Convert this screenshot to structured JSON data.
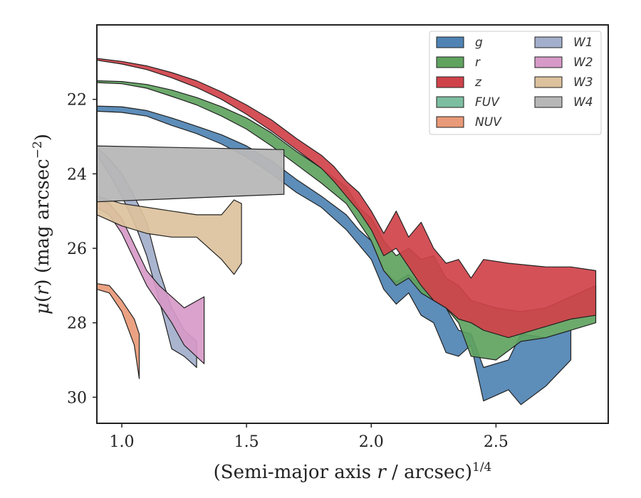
{
  "chart_data": {
    "type": "area",
    "xlabel": "(Semi-major axis r / arcsec)^{1/4}",
    "ylabel": "μ(r) (mag arcsec^{-2})",
    "xlim": [
      0.9,
      2.95
    ],
    "ylim": [
      30.7,
      20.0
    ],
    "y_inverted": true,
    "xticks": [
      "1.0",
      "1.5",
      "2.0",
      "2.5"
    ],
    "xtick_values": [
      1.0,
      1.5,
      2.0,
      2.5
    ],
    "yticks": [
      "22",
      "24",
      "26",
      "28",
      "30"
    ],
    "ytick_values": [
      22,
      24,
      26,
      28,
      30
    ],
    "legend_position": "top-right",
    "legend_columns": 2,
    "series": [
      {
        "name": "g",
        "color": "#4f83b3",
        "upper": [
          [
            0.9,
            22.18
          ],
          [
            1.0,
            22.2
          ],
          [
            1.1,
            22.3
          ],
          [
            1.2,
            22.5
          ],
          [
            1.3,
            22.72
          ],
          [
            1.4,
            22.95
          ],
          [
            1.5,
            23.25
          ],
          [
            1.6,
            23.65
          ],
          [
            1.7,
            24.15
          ],
          [
            1.8,
            24.6
          ],
          [
            1.9,
            25.1
          ],
          [
            1.95,
            25.5
          ],
          [
            2.0,
            25.8
          ],
          [
            2.05,
            26.6
          ],
          [
            2.1,
            26.9
          ],
          [
            2.15,
            26.7
          ],
          [
            2.2,
            27.0
          ],
          [
            2.25,
            26.9
          ],
          [
            2.3,
            27.6
          ],
          [
            2.35,
            28.2
          ],
          [
            2.4,
            28.3
          ],
          [
            2.45,
            29.2
          ],
          [
            2.55,
            29.0
          ],
          [
            2.6,
            28.3
          ],
          [
            2.7,
            28.4
          ],
          [
            2.8,
            28.2
          ]
        ],
        "lower": [
          [
            0.9,
            22.32
          ],
          [
            1.0,
            22.35
          ],
          [
            1.1,
            22.45
          ],
          [
            1.2,
            22.7
          ],
          [
            1.3,
            22.92
          ],
          [
            1.4,
            23.2
          ],
          [
            1.5,
            23.55
          ],
          [
            1.6,
            24.0
          ],
          [
            1.7,
            24.5
          ],
          [
            1.8,
            24.9
          ],
          [
            1.9,
            25.5
          ],
          [
            1.95,
            25.9
          ],
          [
            2.0,
            26.3
          ],
          [
            2.05,
            27.1
          ],
          [
            2.1,
            27.5
          ],
          [
            2.15,
            27.2
          ],
          [
            2.2,
            27.8
          ],
          [
            2.25,
            28.0
          ],
          [
            2.3,
            28.8
          ],
          [
            2.35,
            28.9
          ],
          [
            2.4,
            28.6
          ],
          [
            2.45,
            30.1
          ],
          [
            2.55,
            29.8
          ],
          [
            2.6,
            30.2
          ],
          [
            2.7,
            29.7
          ],
          [
            2.8,
            29.0
          ]
        ]
      },
      {
        "name": "r",
        "color": "#5fa35f",
        "upper": [
          [
            0.9,
            21.5
          ],
          [
            1.0,
            21.52
          ],
          [
            1.1,
            21.6
          ],
          [
            1.2,
            21.75
          ],
          [
            1.3,
            21.95
          ],
          [
            1.4,
            22.2
          ],
          [
            1.5,
            22.5
          ],
          [
            1.6,
            22.9
          ],
          [
            1.7,
            23.4
          ],
          [
            1.8,
            23.85
          ],
          [
            1.9,
            24.35
          ],
          [
            1.95,
            24.9
          ],
          [
            2.0,
            25.2
          ],
          [
            2.05,
            25.8
          ],
          [
            2.1,
            26.2
          ],
          [
            2.15,
            26.0
          ],
          [
            2.2,
            26.3
          ],
          [
            2.25,
            26.2
          ],
          [
            2.3,
            26.8
          ],
          [
            2.35,
            27.0
          ],
          [
            2.4,
            27.4
          ],
          [
            2.5,
            27.6
          ],
          [
            2.6,
            27.7
          ],
          [
            2.7,
            27.6
          ],
          [
            2.8,
            27.3
          ],
          [
            2.9,
            27.0
          ]
        ],
        "lower": [
          [
            0.9,
            21.55
          ],
          [
            1.0,
            21.58
          ],
          [
            1.1,
            21.7
          ],
          [
            1.2,
            21.92
          ],
          [
            1.3,
            22.15
          ],
          [
            1.4,
            22.45
          ],
          [
            1.5,
            22.8
          ],
          [
            1.6,
            23.25
          ],
          [
            1.7,
            23.75
          ],
          [
            1.8,
            24.25
          ],
          [
            1.9,
            24.8
          ],
          [
            1.95,
            25.3
          ],
          [
            2.0,
            25.8
          ],
          [
            2.05,
            26.6
          ],
          [
            2.1,
            27.0
          ],
          [
            2.15,
            26.8
          ],
          [
            2.2,
            27.2
          ],
          [
            2.25,
            27.4
          ],
          [
            2.3,
            27.6
          ],
          [
            2.35,
            28.0
          ],
          [
            2.4,
            28.9
          ],
          [
            2.5,
            29.0
          ],
          [
            2.6,
            28.5
          ],
          [
            2.7,
            28.4
          ],
          [
            2.8,
            28.2
          ],
          [
            2.9,
            28.0
          ]
        ]
      },
      {
        "name": "z",
        "color": "#d0424a",
        "upper": [
          [
            0.9,
            20.9
          ],
          [
            1.0,
            20.98
          ],
          [
            1.1,
            21.1
          ],
          [
            1.2,
            21.28
          ],
          [
            1.3,
            21.5
          ],
          [
            1.4,
            21.8
          ],
          [
            1.5,
            22.15
          ],
          [
            1.6,
            22.55
          ],
          [
            1.7,
            23.05
          ],
          [
            1.8,
            23.5
          ],
          [
            1.85,
            23.8
          ],
          [
            1.9,
            24.2
          ],
          [
            1.95,
            24.5
          ],
          [
            2.0,
            25.0
          ],
          [
            2.05,
            25.6
          ],
          [
            2.1,
            25.0
          ],
          [
            2.15,
            25.7
          ],
          [
            2.2,
            25.3
          ],
          [
            2.25,
            26.0
          ],
          [
            2.3,
            26.4
          ],
          [
            2.35,
            26.3
          ],
          [
            2.4,
            26.8
          ],
          [
            2.45,
            26.3
          ],
          [
            2.55,
            26.4
          ],
          [
            2.7,
            26.5
          ],
          [
            2.8,
            26.5
          ],
          [
            2.9,
            26.6
          ]
        ],
        "lower": [
          [
            0.9,
            20.95
          ],
          [
            1.0,
            21.05
          ],
          [
            1.1,
            21.2
          ],
          [
            1.2,
            21.42
          ],
          [
            1.3,
            21.68
          ],
          [
            1.4,
            22.0
          ],
          [
            1.5,
            22.4
          ],
          [
            1.6,
            22.85
          ],
          [
            1.7,
            23.35
          ],
          [
            1.8,
            23.85
          ],
          [
            1.85,
            24.2
          ],
          [
            1.9,
            24.6
          ],
          [
            1.95,
            25.0
          ],
          [
            2.0,
            25.5
          ],
          [
            2.05,
            26.2
          ],
          [
            2.1,
            26.0
          ],
          [
            2.15,
            26.5
          ],
          [
            2.2,
            27.0
          ],
          [
            2.25,
            27.4
          ],
          [
            2.3,
            27.6
          ],
          [
            2.35,
            27.9
          ],
          [
            2.4,
            28.0
          ],
          [
            2.45,
            28.2
          ],
          [
            2.55,
            28.4
          ],
          [
            2.7,
            28.1
          ],
          [
            2.8,
            27.9
          ],
          [
            2.9,
            27.8
          ]
        ]
      },
      {
        "name": "FUV",
        "color": "#7dbea0",
        "upper": [],
        "lower": []
      },
      {
        "name": "NUV",
        "color": "#e99a78",
        "upper": [
          [
            0.9,
            26.95
          ],
          [
            0.95,
            27.0
          ],
          [
            1.0,
            27.4
          ],
          [
            1.05,
            27.9
          ],
          [
            1.07,
            28.3
          ]
        ],
        "lower": [
          [
            0.9,
            27.1
          ],
          [
            0.95,
            27.2
          ],
          [
            1.0,
            27.7
          ],
          [
            1.05,
            28.6
          ],
          [
            1.07,
            29.5
          ]
        ]
      },
      {
        "name": "W1",
        "color": "#a2aecb",
        "upper": [
          [
            0.9,
            23.3
          ],
          [
            0.95,
            23.6
          ],
          [
            1.0,
            24.0
          ],
          [
            1.05,
            24.6
          ],
          [
            1.1,
            25.3
          ],
          [
            1.15,
            26.6
          ],
          [
            1.2,
            27.6
          ],
          [
            1.25,
            28.2
          ],
          [
            1.3,
            28.5
          ]
        ],
        "lower": [
          [
            0.9,
            23.5
          ],
          [
            0.95,
            24.0
          ],
          [
            1.0,
            24.6
          ],
          [
            1.05,
            25.3
          ],
          [
            1.1,
            26.2
          ],
          [
            1.15,
            27.4
          ],
          [
            1.2,
            28.7
          ],
          [
            1.25,
            28.9
          ],
          [
            1.3,
            29.2
          ]
        ]
      },
      {
        "name": "W2",
        "color": "#d79ac8",
        "upper": [
          [
            0.9,
            24.7
          ],
          [
            0.95,
            24.8
          ],
          [
            1.0,
            25.2
          ],
          [
            1.05,
            25.9
          ],
          [
            1.1,
            26.6
          ],
          [
            1.15,
            27.0
          ],
          [
            1.2,
            27.3
          ],
          [
            1.25,
            27.6
          ],
          [
            1.33,
            27.3
          ]
        ],
        "lower": [
          [
            0.9,
            24.9
          ],
          [
            0.95,
            25.1
          ],
          [
            1.0,
            25.6
          ],
          [
            1.05,
            26.3
          ],
          [
            1.1,
            27.0
          ],
          [
            1.15,
            27.5
          ],
          [
            1.2,
            28.0
          ],
          [
            1.25,
            28.6
          ],
          [
            1.33,
            29.1
          ]
        ]
      },
      {
        "name": "W3",
        "color": "#dcc19c",
        "upper": [
          [
            0.9,
            24.6
          ],
          [
            1.0,
            24.8
          ],
          [
            1.1,
            24.9
          ],
          [
            1.2,
            25.0
          ],
          [
            1.3,
            25.1
          ],
          [
            1.4,
            25.1
          ],
          [
            1.45,
            24.7
          ],
          [
            1.48,
            24.8
          ]
        ],
        "lower": [
          [
            0.9,
            25.1
          ],
          [
            1.0,
            25.4
          ],
          [
            1.1,
            25.6
          ],
          [
            1.2,
            25.7
          ],
          [
            1.3,
            25.7
          ],
          [
            1.4,
            26.3
          ],
          [
            1.45,
            26.7
          ],
          [
            1.48,
            26.4
          ]
        ]
      },
      {
        "name": "W4",
        "color": "#b7b7b7",
        "upper": [
          [
            0.9,
            23.25
          ],
          [
            1.65,
            23.35
          ]
        ],
        "lower": [
          [
            0.9,
            24.75
          ],
          [
            1.65,
            24.55
          ]
        ]
      }
    ]
  }
}
